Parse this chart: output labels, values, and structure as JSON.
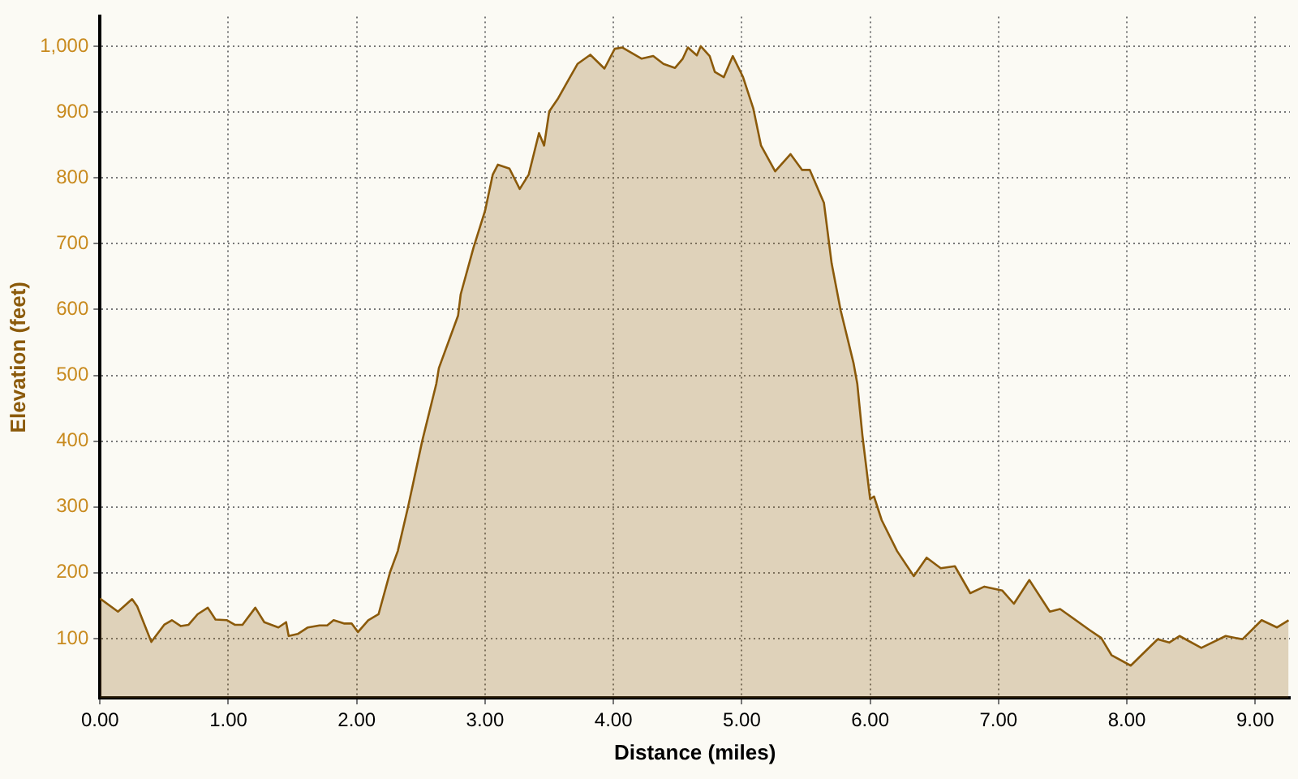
{
  "chart_data": {
    "type": "area",
    "xlabel": "Distance (miles)",
    "ylabel": "Elevation (feet)",
    "xlim": [
      0,
      9.27
    ],
    "ylim": [
      10,
      1045
    ],
    "xticks": [
      {
        "value": 0,
        "label": "0.00"
      },
      {
        "value": 1,
        "label": "1.00"
      },
      {
        "value": 2,
        "label": "2.00"
      },
      {
        "value": 3,
        "label": "3.00"
      },
      {
        "value": 4,
        "label": "4.00"
      },
      {
        "value": 5,
        "label": "5.00"
      },
      {
        "value": 6,
        "label": "6.00"
      },
      {
        "value": 7,
        "label": "7.00"
      },
      {
        "value": 8,
        "label": "8.00"
      },
      {
        "value": 9,
        "label": "9.00"
      }
    ],
    "yticks": [
      100,
      200,
      300,
      400,
      500,
      600,
      700,
      800,
      900,
      {
        "value": 1000,
        "label": "1,000"
      }
    ],
    "grid": true,
    "legend": false,
    "marker": "none",
    "line_style": "solid",
    "series": [
      {
        "color": "#8b5a0a",
        "x": [
          0.0,
          0.14,
          0.25,
          0.29,
          0.4,
          0.5,
          0.56,
          0.63,
          0.69,
          0.76,
          0.84,
          0.9,
          0.99,
          1.05,
          1.11,
          1.21,
          1.28,
          1.39,
          1.45,
          1.47,
          1.54,
          1.62,
          1.71,
          1.77,
          1.82,
          1.9,
          1.96,
          2.01,
          2.09,
          2.17,
          2.26,
          2.32,
          2.4,
          2.51,
          2.62,
          2.64,
          2.79,
          2.81,
          2.91,
          3.0,
          3.06,
          3.1,
          3.19,
          3.27,
          3.34,
          3.42,
          3.46,
          3.5,
          3.57,
          3.65,
          3.72,
          3.82,
          3.93,
          4.01,
          4.07,
          4.22,
          4.31,
          4.39,
          4.48,
          4.54,
          4.58,
          4.65,
          4.68,
          4.75,
          4.79,
          4.86,
          4.93,
          5.01,
          5.09,
          5.15,
          5.26,
          5.38,
          5.47,
          5.53,
          5.64,
          5.7,
          5.77,
          5.87,
          5.9,
          5.94,
          6.0,
          6.03,
          6.09,
          6.21,
          6.34,
          6.44,
          6.55,
          6.66,
          6.78,
          6.89,
          7.03,
          7.12,
          7.24,
          7.4,
          7.48,
          7.71,
          7.8,
          7.88,
          8.03,
          8.24,
          8.33,
          8.41,
          8.58,
          8.77,
          8.9,
          9.05,
          9.17,
          9.26
        ],
        "values": [
          161,
          141,
          160,
          149,
          95,
          121,
          128,
          119,
          121,
          137,
          147,
          129,
          128,
          121,
          121,
          147,
          125,
          117,
          125,
          104,
          107,
          117,
          120,
          120,
          128,
          123,
          123,
          110,
          128,
          137,
          201,
          233,
          300,
          400,
          487,
          511,
          591,
          623,
          694,
          750,
          805,
          820,
          814,
          783,
          805,
          868,
          849,
          901,
          921,
          949,
          973,
          987,
          966,
          996,
          998,
          981,
          985,
          973,
          967,
          981,
          998,
          986,
          1000,
          985,
          961,
          953,
          985,
          953,
          905,
          849,
          810,
          836,
          812,
          812,
          762,
          670,
          599,
          519,
          487,
          408,
          312,
          316,
          280,
          233,
          195,
          223,
          207,
          210,
          169,
          179,
          173,
          153,
          189,
          141,
          145,
          113,
          101,
          75,
          59,
          99,
          94,
          104,
          86,
          104,
          99,
          128,
          117,
          128
        ]
      }
    ]
  }
}
